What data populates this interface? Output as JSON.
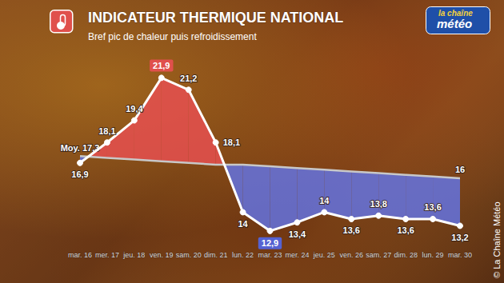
{
  "chart_data": {
    "type": "line",
    "title": "INDICATEUR THERMIQUE NATIONAL",
    "subtitle": "Bref pic de chaleur puis refroidissement",
    "annotations": [
      "la chaîne",
      "météo",
      "© La Chaîne Météo"
    ],
    "categories": [
      "mar. 16",
      "mer. 17",
      "jeu. 18",
      "ven. 19",
      "sam. 20",
      "dim. 21",
      "lun. 22",
      "mar. 23",
      "mer. 24",
      "jeu. 25",
      "ven. 26",
      "sam. 27",
      "dim. 28",
      "lun. 29",
      "mar. 30"
    ],
    "series": [
      {
        "color": "#ffffff",
        "marker": "circle",
        "values": [
          16.9,
          18.1,
          19.4,
          21.9,
          21.2,
          18.1,
          14,
          12.9,
          13.4,
          14,
          13.6,
          13.8,
          13.6,
          13.6,
          13.2
        ],
        "value_labels": [
          "16,9",
          "18,1",
          "19,4",
          "21,9",
          "21,2",
          "18,1",
          "14",
          "12,9",
          "13,4",
          "14",
          "13,6",
          "13,8",
          "13,6",
          "13,6",
          "13,2"
        ]
      },
      {
        "color": "#c8c8c8",
        "values": [
          17.3,
          17.2,
          17.1,
          17.0,
          16.9,
          16.8,
          16.8,
          16.7,
          16.6,
          16.5,
          16.4,
          16.3,
          16.2,
          16.1,
          16
        ],
        "value_labels": [
          "Moy. 17,3",
          null,
          null,
          null,
          null,
          null,
          null,
          null,
          null,
          null,
          null,
          null,
          null,
          null,
          "16"
        ]
      }
    ],
    "ylim": [
      12,
      23
    ],
    "grid": false,
    "data_labels": true,
    "tick_labels": "x"
  }
}
